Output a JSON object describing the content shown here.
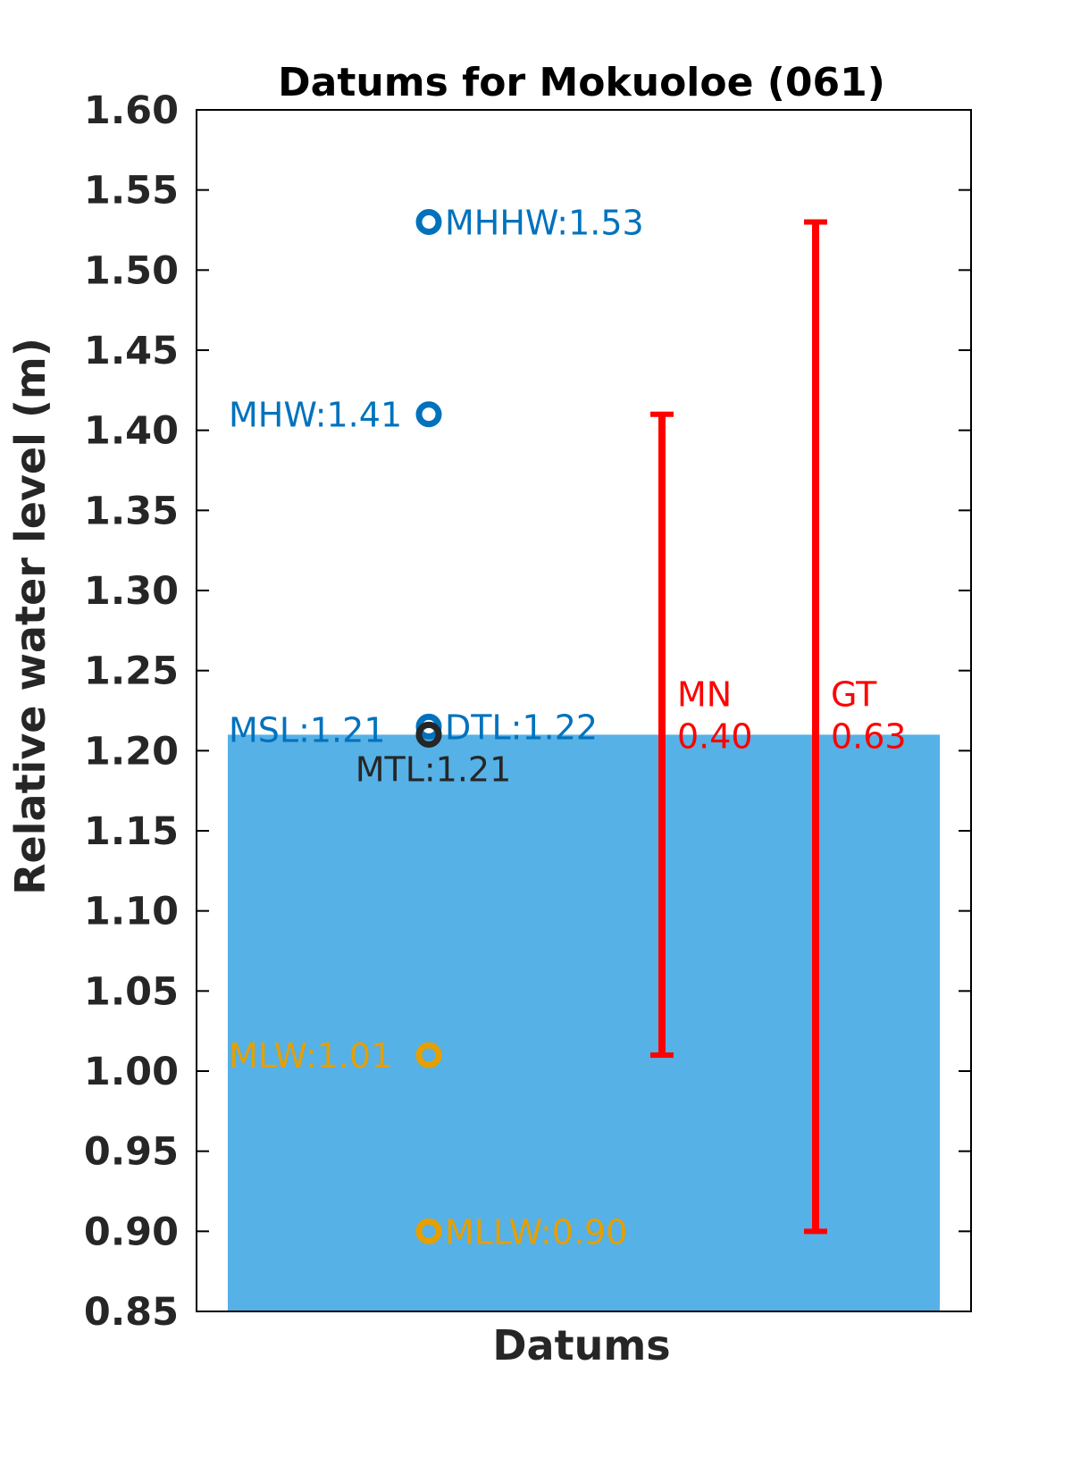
{
  "chart_data": {
    "type": "scatter",
    "title": "Datums for Mokuoloe (061)",
    "xlabel": "Datums",
    "ylabel": "Relative water level (m)",
    "ylim": [
      0.85,
      1.6
    ],
    "yticks": [
      "0.85",
      "0.90",
      "0.95",
      "1.00",
      "1.05",
      "1.10",
      "1.15",
      "1.20",
      "1.25",
      "1.30",
      "1.35",
      "1.40",
      "1.45",
      "1.50",
      "1.55",
      "1.60"
    ],
    "grid": false,
    "background_level": {
      "value": 1.21,
      "color": "#56B1E6"
    },
    "datums": [
      {
        "name": "MHHW",
        "value": 1.53,
        "label": "MHHW:1.53",
        "color": "#0072BD",
        "label_side": "right"
      },
      {
        "name": "MHW",
        "value": 1.41,
        "label": "MHW:1.41",
        "color": "#0072BD",
        "label_side": "left"
      },
      {
        "name": "DTL",
        "value": 1.215,
        "label": "DTL:1.22",
        "color": "#0072BD",
        "label_side": "right"
      },
      {
        "name": "MSL",
        "value": 1.21,
        "label": "MSL:1.21",
        "color": "#0072BD",
        "label_side": "left"
      },
      {
        "name": "MTL",
        "value": 1.21,
        "label": "MTL:1.21",
        "color": "#262626",
        "label_side": "below"
      },
      {
        "name": "MLW",
        "value": 1.01,
        "label": "MLW:1.01",
        "color": "#E69F00",
        "label_side": "left"
      },
      {
        "name": "MLLW",
        "value": 0.9,
        "label": "MLLW:0.90",
        "color": "#E69F00",
        "label_side": "right"
      }
    ],
    "ranges": [
      {
        "name": "MN",
        "value": "0.40",
        "low": 1.01,
        "high": 1.41,
        "color": "#FF0000"
      },
      {
        "name": "GT",
        "value": "0.63",
        "low": 0.9,
        "high": 1.53,
        "color": "#FF0000"
      }
    ]
  }
}
